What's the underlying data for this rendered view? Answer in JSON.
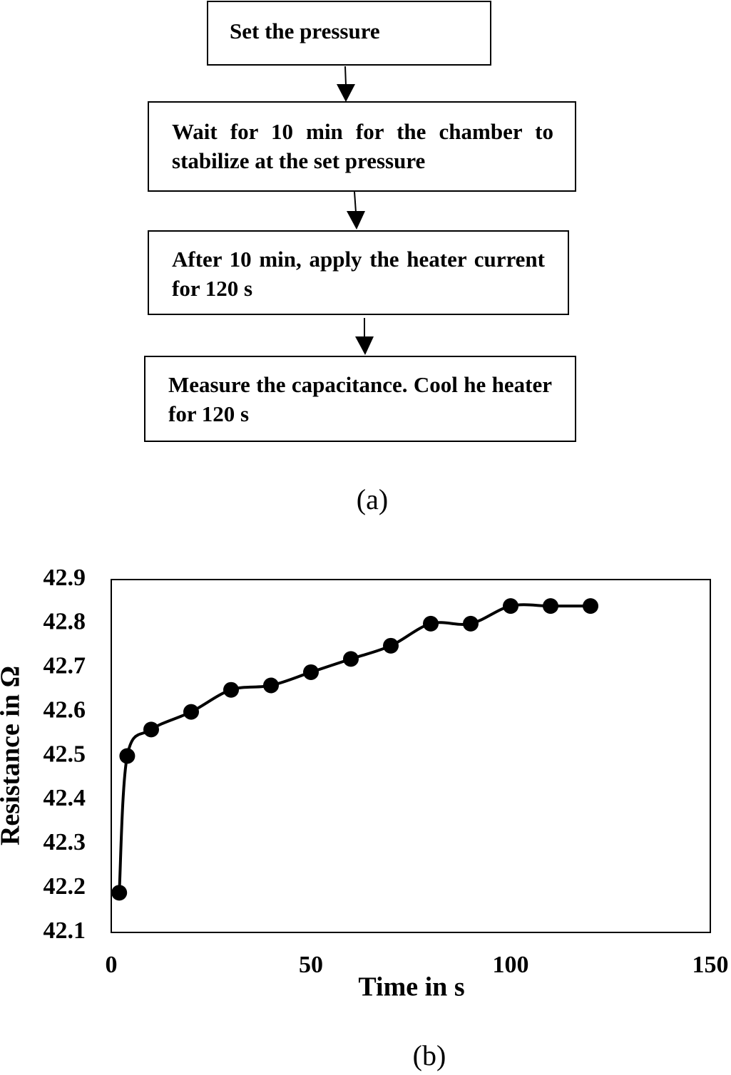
{
  "flowchart": {
    "steps": [
      "Set the pressure",
      "Wait for 10 min for the chamber to stabilize at the set pressure",
      "After 10 min, apply the heater current for 120 s",
      "Measure the capacitance. Cool he heater for 120 s"
    ],
    "caption": "(a)"
  },
  "chart_data": {
    "type": "line",
    "caption": "(b)",
    "x_label": "Time in s",
    "y_label": "Resistance in Ω",
    "x": [
      2,
      4,
      10,
      20,
      30,
      40,
      50,
      60,
      70,
      80,
      90,
      100,
      110,
      120
    ],
    "values": [
      42.19,
      42.5,
      42.56,
      42.6,
      42.65,
      42.66,
      42.69,
      42.72,
      42.75,
      42.8,
      42.8,
      42.84,
      42.84,
      42.84
    ],
    "color": "#000000",
    "markers": true,
    "smooth": true,
    "xlim": [
      0,
      150
    ],
    "xticks": [
      0,
      50,
      100,
      150
    ],
    "ylim": [
      42.1,
      42.9
    ],
    "yticks": [
      42.1,
      42.2,
      42.3,
      42.4,
      42.5,
      42.6,
      42.7,
      42.8,
      42.9
    ],
    "grid": false
  }
}
